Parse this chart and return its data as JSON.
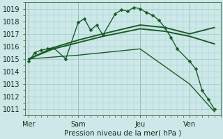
{
  "bg_color": "#cce8e8",
  "grid_color": "#aacccc",
  "line_color": "#1a5c28",
  "xlabel": "Pression niveau de la mer( hPa )",
  "ylim": [
    1010.5,
    1019.5
  ],
  "yticks": [
    1011,
    1012,
    1013,
    1014,
    1015,
    1016,
    1017,
    1018,
    1019
  ],
  "xtick_labels": [
    "Mer",
    "Sam",
    "Jeu",
    "Ven"
  ],
  "xtick_pos": [
    0,
    4,
    9,
    13
  ],
  "xlim": [
    -0.3,
    15.5
  ],
  "vlines_x": [
    0,
    4,
    9,
    13
  ],
  "vline_color": "#557755",
  "series": [
    {
      "x": [
        0,
        0.5,
        1,
        1.5,
        2,
        3,
        4,
        4.5,
        5,
        5.5,
        6,
        7,
        7.5,
        8,
        8.5,
        9,
        9.5,
        10,
        10.5,
        11,
        11.5,
        12,
        13,
        13.5,
        14,
        14.5,
        15
      ],
      "y": [
        1014.8,
        1015.5,
        1015.7,
        1015.8,
        1015.9,
        1015.0,
        1017.9,
        1018.2,
        1017.3,
        1017.7,
        1016.9,
        1018.6,
        1018.9,
        1018.8,
        1019.1,
        1019.0,
        1018.7,
        1018.5,
        1018.1,
        1017.5,
        1016.7,
        1015.8,
        1014.8,
        1014.2,
        1012.5,
        1011.8,
        1011.0
      ],
      "marker": "D",
      "markersize": 2.5,
      "linewidth": 1.0
    },
    {
      "x": [
        0,
        2,
        4,
        6,
        9,
        11,
        13,
        15
      ],
      "y": [
        1015.0,
        1015.9,
        1016.5,
        1017.0,
        1017.7,
        1017.5,
        1017.0,
        1017.5
      ],
      "marker": null,
      "markersize": 0,
      "linewidth": 1.4
    },
    {
      "x": [
        0,
        2,
        4,
        6,
        9,
        11,
        13,
        15
      ],
      "y": [
        1015.0,
        1015.8,
        1016.3,
        1016.8,
        1017.4,
        1017.2,
        1016.8,
        1016.2
      ],
      "marker": null,
      "markersize": 0,
      "linewidth": 1.4
    },
    {
      "x": [
        0,
        4,
        9,
        13,
        15
      ],
      "y": [
        1015.0,
        1015.3,
        1015.8,
        1013.0,
        1010.8
      ],
      "marker": null,
      "markersize": 0,
      "linewidth": 1.0
    }
  ]
}
